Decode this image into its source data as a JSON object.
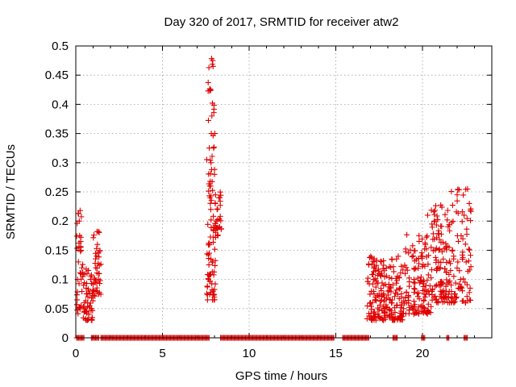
{
  "chart_data": {
    "type": "scatter",
    "title": "Day 320 of 2017, SRMTID for receiver atw2",
    "xlabel": "GPS time / hours",
    "ylabel": "SRMTID / TECUs",
    "xlim": [
      0,
      24
    ],
    "ylim": [
      0,
      0.5
    ],
    "x_ticks": [
      0,
      5,
      10,
      15,
      20
    ],
    "x_tick_labels": [
      "0",
      "5",
      "10",
      "15",
      "20"
    ],
    "y_ticks": [
      0,
      0.05,
      0.1,
      0.15,
      0.2,
      0.25,
      0.3,
      0.35,
      0.4,
      0.45,
      0.5
    ],
    "y_tick_labels": [
      "0",
      "0.05",
      "0.1",
      "0.15",
      "0.2",
      "0.25",
      "0.3",
      "0.35",
      "0.4",
      "0.45",
      "0.5"
    ],
    "grid": true,
    "marker": "+",
    "marker_color": "#e00000",
    "zero_value_x_ranges": [
      [
        0.05,
        0.5
      ],
      [
        0.9,
        1.35
      ],
      [
        1.45,
        7.7
      ],
      [
        8.35,
        14.9
      ],
      [
        15.4,
        16.9
      ],
      [
        18.3,
        18.55
      ],
      [
        19.95,
        20.15
      ],
      [
        21.4,
        21.55
      ],
      [
        22.4,
        22.6
      ]
    ],
    "clusters": [
      {
        "x_range": [
          0.05,
          0.4
        ],
        "y_range": [
          0.04,
          0.22
        ],
        "count": 28
      },
      {
        "x_range": [
          0.4,
          1.0
        ],
        "y_range": [
          0.03,
          0.12
        ],
        "count": 45
      },
      {
        "x_range": [
          1.0,
          1.45
        ],
        "y_range": [
          0.07,
          0.185
        ],
        "count": 35
      },
      {
        "x_range": [
          7.55,
          8.05
        ],
        "y_range": [
          0.065,
          0.48
        ],
        "count": 90
      },
      {
        "x_range": [
          8.05,
          8.4
        ],
        "y_range": [
          0.17,
          0.25
        ],
        "count": 25
      },
      {
        "x_range": [
          16.8,
          19.0
        ],
        "y_range": [
          0.03,
          0.14
        ],
        "count": 200
      },
      {
        "x_range": [
          19.0,
          20.5
        ],
        "y_range": [
          0.04,
          0.18
        ],
        "count": 120
      },
      {
        "x_range": [
          20.5,
          21.6
        ],
        "y_range": [
          0.06,
          0.23
        ],
        "count": 110
      },
      {
        "x_range": [
          21.6,
          22.8
        ],
        "y_range": [
          0.06,
          0.255
        ],
        "count": 80
      }
    ],
    "points": [
      [
        0.08,
        0.065
      ],
      [
        0.1,
        0.1
      ],
      [
        0.15,
        0.13
      ],
      [
        0.18,
        0.155
      ],
      [
        0.2,
        0.2
      ],
      [
        0.22,
        0.175
      ],
      [
        0.25,
        0.218
      ],
      [
        0.28,
        0.165
      ],
      [
        0.3,
        0.15
      ],
      [
        0.35,
        0.12
      ],
      [
        0.4,
        0.105
      ],
      [
        0.45,
        0.09
      ],
      [
        0.5,
        0.06
      ],
      [
        0.55,
        0.045
      ],
      [
        0.6,
        0.085
      ],
      [
        0.65,
        0.11
      ],
      [
        0.7,
        0.07
      ],
      [
        0.75,
        0.04
      ],
      [
        0.8,
        0.055
      ],
      [
        0.85,
        0.1
      ],
      [
        0.9,
        0.05
      ],
      [
        0.95,
        0.035
      ],
      [
        1.05,
        0.08
      ],
      [
        1.1,
        0.1
      ],
      [
        1.15,
        0.12
      ],
      [
        1.2,
        0.14
      ],
      [
        1.25,
        0.16
      ],
      [
        1.3,
        0.182
      ],
      [
        1.35,
        0.11
      ],
      [
        7.6,
        0.065
      ],
      [
        7.65,
        0.1
      ],
      [
        7.7,
        0.145
      ],
      [
        7.72,
        0.26
      ],
      [
        7.75,
        0.24
      ],
      [
        7.8,
        0.3
      ],
      [
        7.82,
        0.35
      ],
      [
        7.85,
        0.38
      ],
      [
        7.88,
        0.402
      ],
      [
        7.9,
        0.475
      ],
      [
        7.92,
        0.465
      ],
      [
        7.95,
        0.325
      ],
      [
        8.0,
        0.28
      ],
      [
        8.05,
        0.23
      ],
      [
        8.1,
        0.2
      ],
      [
        8.15,
        0.22
      ],
      [
        8.2,
        0.175
      ],
      [
        8.25,
        0.24
      ],
      [
        8.3,
        0.19
      ],
      [
        16.9,
        0.125
      ],
      [
        17.0,
        0.06
      ],
      [
        17.2,
        0.1
      ],
      [
        17.5,
        0.075
      ],
      [
        17.8,
        0.115
      ],
      [
        18.0,
        0.08
      ],
      [
        18.2,
        0.04
      ],
      [
        18.5,
        0.135
      ],
      [
        18.8,
        0.06
      ],
      [
        19.0,
        0.11
      ],
      [
        19.2,
        0.07
      ],
      [
        19.5,
        0.095
      ],
      [
        19.8,
        0.175
      ],
      [
        20.0,
        0.14
      ],
      [
        20.3,
        0.21
      ],
      [
        20.5,
        0.155
      ],
      [
        20.7,
        0.2
      ],
      [
        20.9,
        0.12
      ],
      [
        21.0,
        0.09
      ],
      [
        21.2,
        0.135
      ],
      [
        21.5,
        0.07
      ],
      [
        21.8,
        0.14
      ],
      [
        22.0,
        0.245
      ],
      [
        22.2,
        0.1
      ],
      [
        22.4,
        0.21
      ],
      [
        22.6,
        0.255
      ],
      [
        22.7,
        0.23
      ],
      [
        22.75,
        0.085
      ]
    ]
  }
}
